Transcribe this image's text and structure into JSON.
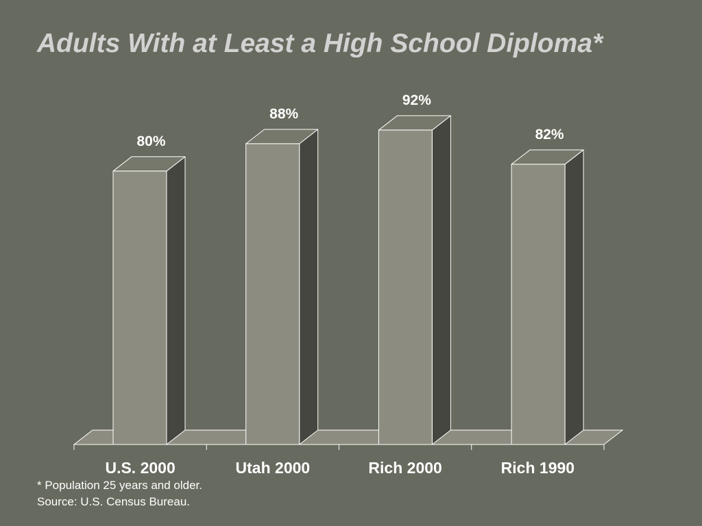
{
  "title": "Adults With at Least a High School Diploma*",
  "footnotes": [
    "* Population 25 years and older.",
    "Source: U.S. Census Bureau."
  ],
  "colors": {
    "background": "#676a5e",
    "bar_front": "#8c8d80",
    "bar_side": "#45463f",
    "bar_top": "#76786b",
    "floor": "#8c8d80",
    "edge": "#ffffff",
    "title": "#d2d2d2",
    "text": "#ffffff"
  },
  "chart_data": {
    "type": "bar",
    "style": "3d-column",
    "categories": [
      "U.S. 2000",
      "Utah 2000",
      "Rich 2000",
      "Rich 1990"
    ],
    "values": [
      80,
      88,
      92,
      82
    ],
    "data_labels": [
      "80%",
      "88%",
      "92%",
      "82%"
    ],
    "title": "Adults With at Least a High School Diploma*",
    "xlabel": "",
    "ylabel": "",
    "ylim": [
      0,
      100
    ],
    "grid": false,
    "legend": "none"
  }
}
